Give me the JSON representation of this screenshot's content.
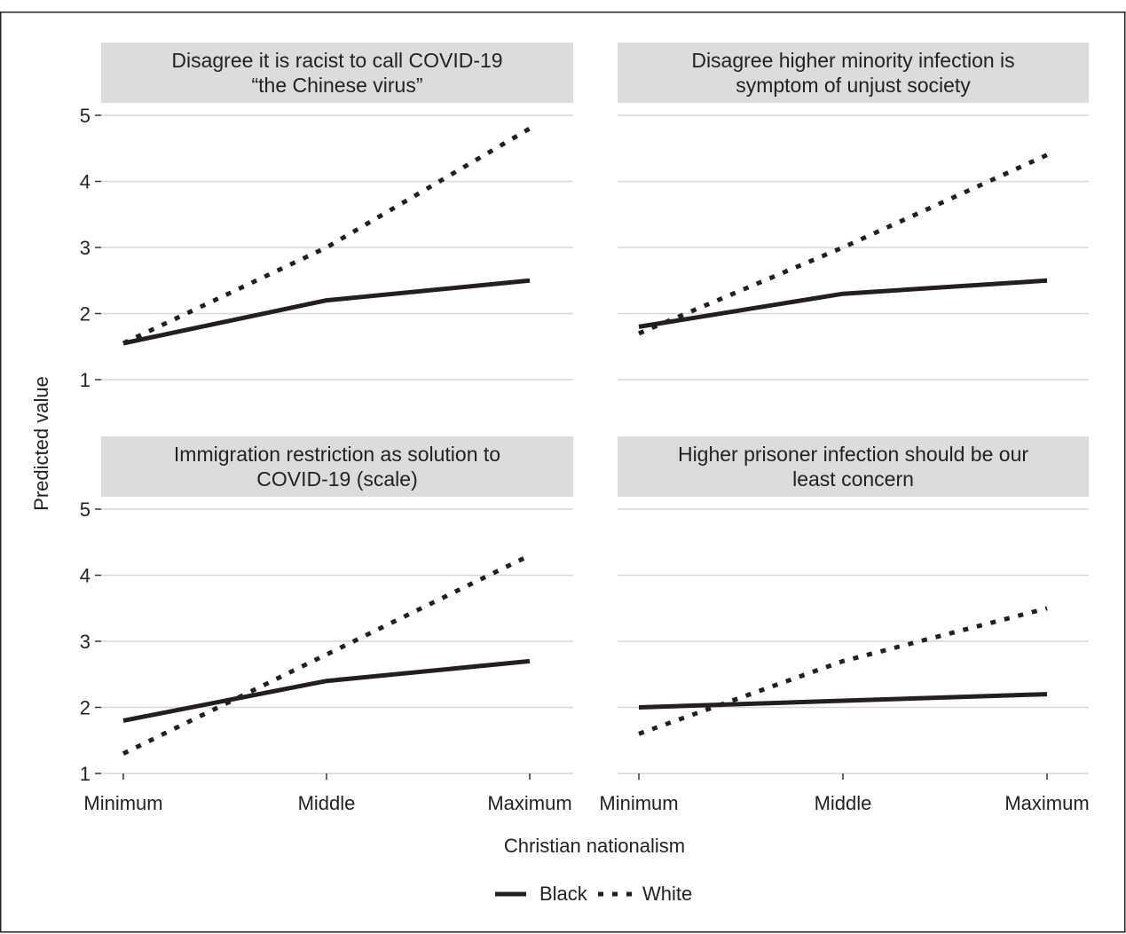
{
  "chart_data": {
    "type": "line",
    "layout": "faceted 2x2",
    "xlabel": "Christian nationalism",
    "ylabel": "Predicted value",
    "categories": [
      "Minimum",
      "Middle",
      "Maximum"
    ],
    "ylim": [
      1,
      5
    ],
    "yticks": [
      "1",
      "2",
      "3",
      "4",
      "5"
    ],
    "grid": true,
    "legend_position": "bottom",
    "legend": [
      {
        "name": "Black",
        "style": "solid"
      },
      {
        "name": "White",
        "style": "dotted"
      }
    ],
    "panels": [
      {
        "title_lines": [
          "Disagree it is racist to call COVID-19",
          "“the Chinese virus”"
        ],
        "series": [
          {
            "name": "Black",
            "values": [
              1.55,
              2.2,
              2.5
            ]
          },
          {
            "name": "White",
            "values": [
              1.55,
              3.0,
              4.8
            ]
          }
        ]
      },
      {
        "title_lines": [
          "Disagree higher minority infection is",
          "symptom of unjust society"
        ],
        "series": [
          {
            "name": "Black",
            "values": [
              1.8,
              2.3,
              2.5
            ]
          },
          {
            "name": "White",
            "values": [
              1.7,
              3.0,
              4.4
            ]
          }
        ]
      },
      {
        "title_lines": [
          "Immigration restriction as solution to",
          "COVID-19 (scale)"
        ],
        "series": [
          {
            "name": "Black",
            "values": [
              1.8,
              2.4,
              2.7
            ]
          },
          {
            "name": "White",
            "values": [
              1.3,
              2.8,
              4.3
            ]
          }
        ]
      },
      {
        "title_lines": [
          "Higher prisoner infection should be our",
          "least concern"
        ],
        "series": [
          {
            "name": "Black",
            "values": [
              2.0,
              2.1,
              2.2
            ]
          },
          {
            "name": "White",
            "values": [
              1.6,
              2.7,
              3.5
            ]
          }
        ]
      }
    ]
  },
  "colors": {
    "line": "#231f20",
    "strip_background": "#dcdcdc",
    "grid": "#d6d6d6"
  }
}
